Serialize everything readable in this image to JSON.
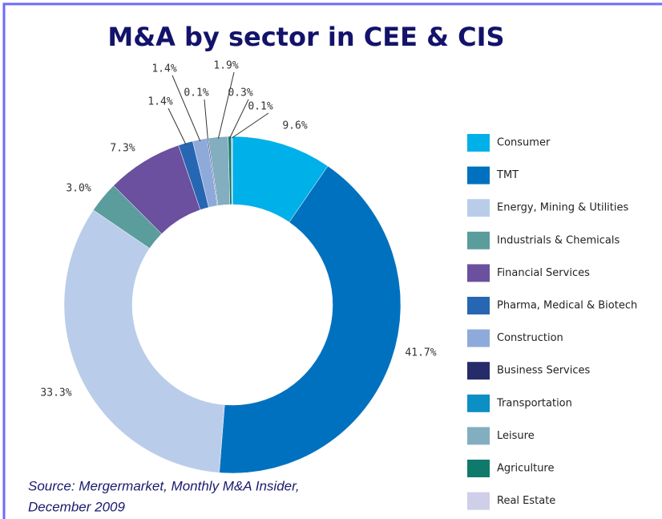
{
  "chart_data": {
    "type": "donut",
    "title": "M&A by sector in CEE & CIS",
    "categories": [
      "Consumer",
      "TMT",
      "Energy, Mining & Utilities",
      "Industrials & Chemicals",
      "Financial Services",
      "Pharma, Medical & Biotech",
      "Construction",
      "Business Services",
      "Transportation",
      "Leisure",
      "Agriculture",
      "Real Estate"
    ],
    "values": [
      9.6,
      41.7,
      33.3,
      3.0,
      7.3,
      1.4,
      1.4,
      0.1,
      null,
      1.9,
      0.3,
      0.1
    ],
    "value_labels": [
      "9.6%",
      "41.7%",
      "33.3%",
      "3.0%",
      "7.3%",
      "1.4%",
      "1.4%",
      "0.1%",
      null,
      "1.9%",
      "0.3%",
      "0.1%"
    ],
    "colors": [
      "#00b0e8",
      "#0071bf",
      "#b9cdea",
      "#5b9c9c",
      "#6a509e",
      "#2766b2",
      "#8eaadb",
      "#262b6a",
      "#0b8fc4",
      "#82aebf",
      "#0f7a6c",
      "#cfcfea"
    ],
    "legend": "right",
    "source": [
      "Source:   Mergermarket, Monthly M&A Insider,",
      "December 2009"
    ]
  }
}
